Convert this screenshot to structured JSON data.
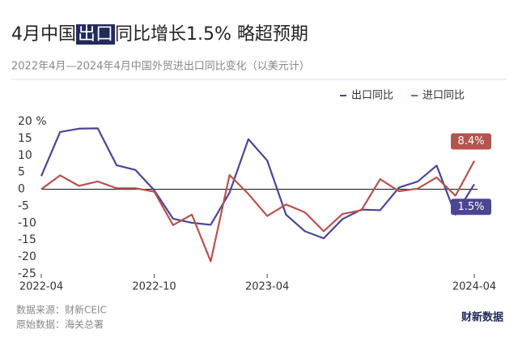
{
  "chart_data": {
    "type": "line",
    "title": {
      "before": "4月中国",
      "highlight": "出口",
      "after": "同比增长1.5% 略超预期"
    },
    "subtitle": "2022年4月—2024年4月中国外贸进出口同比变化（以美元计）",
    "categories": [
      "2022-04",
      null,
      null,
      null,
      null,
      null,
      "2022-10",
      null,
      null,
      null,
      null,
      null,
      "2023-04",
      null,
      null,
      null,
      null,
      null,
      null,
      null,
      null,
      null,
      null,
      "2024-04"
    ],
    "series": [
      {
        "name": "出口同比",
        "color": "#4b4594",
        "values": [
          3.9,
          16.9,
          17.9,
          18.0,
          7.1,
          5.7,
          -0.3,
          -8.7,
          -9.9,
          -10.5,
          -1.0,
          14.8,
          8.5,
          -7.5,
          -12.4,
          -14.5,
          -8.8,
          -6.0,
          -6.2,
          0.5,
          2.3,
          7.0,
          -7.5,
          1.5
        ]
      },
      {
        "name": "进口同比",
        "color": "#b5534f",
        "values": [
          0.0,
          4.1,
          1.0,
          2.3,
          0.3,
          0.3,
          -0.7,
          -10.6,
          -7.5,
          -21.3,
          4.2,
          -1.4,
          -7.9,
          -4.5,
          -6.8,
          -12.4,
          -7.3,
          -6.2,
          3.0,
          -0.6,
          0.2,
          3.5,
          -1.9,
          8.4
        ]
      }
    ],
    "annotations": [
      {
        "series": 1,
        "text": "8.4%"
      },
      {
        "series": 0,
        "text": "1.5%"
      }
    ],
    "ylim": [
      -25,
      20
    ],
    "yticks": [
      {
        "value": 20,
        "label": "20 %"
      },
      15,
      10,
      5,
      0,
      -5,
      -10,
      -15,
      -20,
      -25
    ],
    "grid": false,
    "legend": "top-right",
    "notes": [
      "数据来源：财新CEIC",
      "原始数据：海关总署"
    ],
    "logo": "财新数据"
  }
}
